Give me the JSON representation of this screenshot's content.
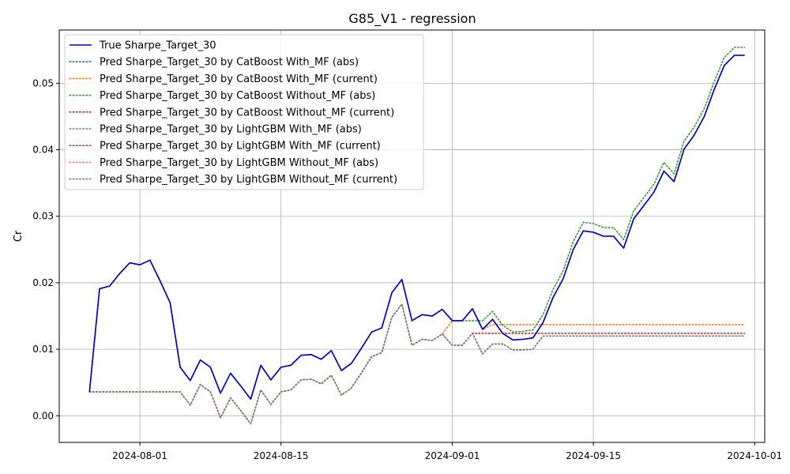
{
  "chart_data": {
    "type": "line",
    "title": "G85_V1 - regression",
    "xlabel": "",
    "ylabel": "Cr",
    "x_type": "date",
    "xlim": [
      "2024-07-24",
      "2024-10-02"
    ],
    "ylim": [
      -0.004,
      0.058
    ],
    "x_ticks": [
      "2024-08-01",
      "2024-08-15",
      "2024-09-01",
      "2024-09-15",
      "2024-10-01"
    ],
    "y_ticks": [
      0.0,
      0.01,
      0.02,
      0.03,
      0.04,
      0.05
    ],
    "y_tick_labels": [
      "0.00",
      "0.01",
      "0.02",
      "0.03",
      "0.04",
      "0.05"
    ],
    "grid": true,
    "legend_position": "top-left",
    "x": [
      "2024-07-27",
      "2024-07-28",
      "2024-07-29",
      "2024-07-30",
      "2024-07-31",
      "2024-08-01",
      "2024-08-02",
      "2024-08-03",
      "2024-08-04",
      "2024-08-05",
      "2024-08-06",
      "2024-08-07",
      "2024-08-08",
      "2024-08-09",
      "2024-08-10",
      "2024-08-11",
      "2024-08-12",
      "2024-08-13",
      "2024-08-14",
      "2024-08-15",
      "2024-08-16",
      "2024-08-17",
      "2024-08-18",
      "2024-08-19",
      "2024-08-20",
      "2024-08-21",
      "2024-08-22",
      "2024-08-23",
      "2024-08-24",
      "2024-08-25",
      "2024-08-26",
      "2024-08-27",
      "2024-08-28",
      "2024-08-29",
      "2024-08-30",
      "2024-08-31",
      "2024-09-01",
      "2024-09-02",
      "2024-09-03",
      "2024-09-04",
      "2024-09-05",
      "2024-09-06",
      "2024-09-07",
      "2024-09-08",
      "2024-09-09",
      "2024-09-10",
      "2024-09-11",
      "2024-09-12",
      "2024-09-13",
      "2024-09-14",
      "2024-09-15",
      "2024-09-16",
      "2024-09-17",
      "2024-09-18",
      "2024-09-19",
      "2024-09-20",
      "2024-09-21",
      "2024-09-22",
      "2024-09-23",
      "2024-09-24",
      "2024-09-25",
      "2024-09-26",
      "2024-09-27",
      "2024-09-28",
      "2024-09-29",
      "2024-09-30"
    ],
    "series": [
      {
        "name": "True Sharpe_Target_30",
        "color": "#0000cd",
        "style": "solid",
        "values": [
          0.0036,
          0.0191,
          0.0195,
          0.0214,
          0.023,
          0.0227,
          0.0234,
          0.0203,
          0.017,
          0.0073,
          0.0053,
          0.0084,
          0.0073,
          0.0034,
          0.0064,
          0.0045,
          0.0025,
          0.0076,
          0.0054,
          0.0073,
          0.0076,
          0.0091,
          0.0092,
          0.0085,
          0.0098,
          0.0068,
          0.0079,
          0.0102,
          0.0126,
          0.0132,
          0.0185,
          0.0205,
          0.0143,
          0.0152,
          0.015,
          0.016,
          0.0143,
          0.0143,
          0.0161,
          0.013,
          0.0145,
          0.0124,
          0.0114,
          0.0115,
          0.0117,
          0.014,
          0.0178,
          0.0206,
          0.025,
          0.0278,
          0.0276,
          0.027,
          0.027,
          0.0252,
          0.0296,
          0.0316,
          0.0336,
          0.0368,
          0.0352,
          0.0401,
          0.0422,
          0.045,
          0.0491,
          0.0527,
          0.0542,
          0.0542
        ]
      },
      {
        "name": "Pred Sharpe_Target_30 by CatBoost With_MF (abs)",
        "color": "#1f77b4",
        "style": "dotted",
        "values": [
          0.0036,
          0.0191,
          0.0195,
          0.0214,
          0.023,
          0.0227,
          0.0234,
          0.0203,
          0.017,
          0.0073,
          0.0053,
          0.0084,
          0.0073,
          0.0034,
          0.0064,
          0.0045,
          0.0025,
          0.0076,
          0.0054,
          0.0073,
          0.0076,
          0.0091,
          0.0092,
          0.0085,
          0.0098,
          0.0068,
          0.0079,
          0.0102,
          0.0126,
          0.0132,
          0.0185,
          0.0205,
          0.0143,
          0.0152,
          0.015,
          0.016,
          0.0143,
          0.0143,
          0.0161,
          0.013,
          0.0145,
          0.0124,
          0.0114,
          0.0115,
          0.0117,
          0.014,
          0.0178,
          0.0206,
          0.025,
          0.0278,
          0.0276,
          0.027,
          0.027,
          0.0252,
          0.0296,
          0.0316,
          0.0336,
          0.0368,
          0.0352,
          0.0401,
          0.0422,
          0.045,
          0.0491,
          0.0527,
          0.0542,
          0.0542
        ]
      },
      {
        "name": "Pred Sharpe_Target_30 by CatBoost With_MF (current)",
        "color": "#ff7f0e",
        "style": "dotted",
        "values": [
          0.0036,
          0.0036,
          0.0036,
          0.0036,
          0.0036,
          0.0036,
          0.0036,
          0.0036,
          0.0036,
          0.0036,
          0.0016,
          0.0047,
          0.0036,
          -0.0003,
          0.0027,
          0.0008,
          -0.0012,
          0.0039,
          0.0017,
          0.0036,
          0.0039,
          0.0054,
          0.0055,
          0.0048,
          0.0061,
          0.0031,
          0.0042,
          0.0065,
          0.0089,
          0.0095,
          0.0148,
          0.0168,
          0.0106,
          0.0115,
          0.0113,
          0.0123,
          0.0143,
          0.0143,
          0.0161,
          0.013,
          0.0137,
          0.0137,
          0.0137,
          0.0137,
          0.0137,
          0.0137,
          0.0137,
          0.0137,
          0.0137,
          0.0137,
          0.0137,
          0.0137,
          0.0137,
          0.0137,
          0.0137,
          0.0137,
          0.0137,
          0.0137,
          0.0137,
          0.0137,
          0.0137,
          0.0137,
          0.0137,
          0.0137,
          0.0137,
          0.0137
        ]
      },
      {
        "name": "Pred Sharpe_Target_30 by CatBoost Without_MF (abs)",
        "color": "#2ca02c",
        "style": "dotted",
        "values": [
          0.0036,
          0.0191,
          0.0195,
          0.0214,
          0.023,
          0.0227,
          0.0234,
          0.0203,
          0.017,
          0.0073,
          0.0053,
          0.0084,
          0.0073,
          0.0034,
          0.0064,
          0.0045,
          0.0025,
          0.0076,
          0.0054,
          0.0073,
          0.0076,
          0.0091,
          0.0092,
          0.0085,
          0.0098,
          0.0068,
          0.0079,
          0.0102,
          0.0126,
          0.0132,
          0.0185,
          0.0205,
          0.0143,
          0.0152,
          0.015,
          0.016,
          0.0143,
          0.0143,
          0.0143,
          0.0143,
          0.0157,
          0.0136,
          0.0126,
          0.0127,
          0.0129,
          0.0152,
          0.019,
          0.0218,
          0.0262,
          0.0291,
          0.0289,
          0.0283,
          0.0283,
          0.0265,
          0.0308,
          0.0328,
          0.0348,
          0.0381,
          0.0364,
          0.0413,
          0.0434,
          0.0462,
          0.0503,
          0.0539,
          0.0554,
          0.0554
        ]
      },
      {
        "name": "Pred Sharpe_Target_30 by CatBoost Without_MF (current)",
        "color": "#d62728",
        "style": "dotted",
        "values": [
          0.0036,
          0.0036,
          0.0036,
          0.0036,
          0.0036,
          0.0036,
          0.0036,
          0.0036,
          0.0036,
          0.0036,
          0.0016,
          0.0047,
          0.0036,
          -0.0003,
          0.0027,
          0.0008,
          -0.0012,
          0.0039,
          0.0017,
          0.0036,
          0.0039,
          0.0054,
          0.0055,
          0.0048,
          0.0061,
          0.0031,
          0.0042,
          0.0065,
          0.0089,
          0.0095,
          0.0148,
          0.0168,
          0.0106,
          0.0115,
          0.0113,
          0.0123,
          0.0106,
          0.0106,
          0.0124,
          0.0124,
          0.0124,
          0.0124,
          0.0124,
          0.0124,
          0.0124,
          0.0124,
          0.0124,
          0.0124,
          0.0124,
          0.0124,
          0.0124,
          0.0124,
          0.0124,
          0.0124,
          0.0124,
          0.0124,
          0.0124,
          0.0124,
          0.0124,
          0.0124,
          0.0124,
          0.0124,
          0.0124,
          0.0124,
          0.0124,
          0.0124
        ]
      },
      {
        "name": "Pred Sharpe_Target_30 by LightGBM With_MF (abs)",
        "color": "#9467bd",
        "style": "dotted",
        "values": [
          0.0036,
          0.0191,
          0.0195,
          0.0214,
          0.023,
          0.0227,
          0.0234,
          0.0203,
          0.017,
          0.0073,
          0.0053,
          0.0084,
          0.0073,
          0.0034,
          0.0064,
          0.0045,
          0.0025,
          0.0076,
          0.0054,
          0.0073,
          0.0076,
          0.0091,
          0.0092,
          0.0085,
          0.0098,
          0.0068,
          0.0079,
          0.0102,
          0.0126,
          0.0132,
          0.0185,
          0.0205,
          0.0143,
          0.0152,
          0.015,
          0.016,
          0.0143,
          0.0143,
          0.0161,
          0.013,
          0.0145,
          0.0124,
          0.0114,
          0.0115,
          0.0117,
          0.014,
          0.0178,
          0.0206,
          0.025,
          0.0278,
          0.0276,
          0.027,
          0.027,
          0.0252,
          0.0296,
          0.0316,
          0.0336,
          0.0368,
          0.0352,
          0.0401,
          0.0422,
          0.045,
          0.0491,
          0.0527,
          0.0542,
          0.0542
        ]
      },
      {
        "name": "Pred Sharpe_Target_30 by LightGBM With_MF (current)",
        "color": "#8c564b",
        "style": "dotted",
        "values": [
          0.0036,
          0.0036,
          0.0036,
          0.0036,
          0.0036,
          0.0036,
          0.0036,
          0.0036,
          0.0036,
          0.0036,
          0.0016,
          0.0047,
          0.0036,
          -0.0003,
          0.0027,
          0.0008,
          -0.0012,
          0.0039,
          0.0017,
          0.0036,
          0.0039,
          0.0054,
          0.0055,
          0.0048,
          0.0061,
          0.0031,
          0.0042,
          0.0065,
          0.0089,
          0.0095,
          0.0148,
          0.0168,
          0.0106,
          0.0115,
          0.0113,
          0.0123,
          0.0106,
          0.0106,
          0.0124,
          0.0093,
          0.0108,
          0.0108,
          0.0099,
          0.0099,
          0.01,
          0.012,
          0.012,
          0.012,
          0.012,
          0.012,
          0.012,
          0.012,
          0.012,
          0.012,
          0.012,
          0.012,
          0.012,
          0.012,
          0.012,
          0.012,
          0.012,
          0.012,
          0.012,
          0.012,
          0.012,
          0.012
        ]
      },
      {
        "name": "Pred Sharpe_Target_30 by LightGBM Without_MF (abs)",
        "color": "#e377c2",
        "style": "dotted",
        "values": [
          0.0036,
          0.0191,
          0.0195,
          0.0214,
          0.023,
          0.0227,
          0.0234,
          0.0203,
          0.017,
          0.0073,
          0.0053,
          0.0084,
          0.0073,
          0.0034,
          0.0064,
          0.0045,
          0.0025,
          0.0076,
          0.0054,
          0.0073,
          0.0076,
          0.0091,
          0.0092,
          0.0085,
          0.0098,
          0.0068,
          0.0079,
          0.0102,
          0.0126,
          0.0132,
          0.0185,
          0.0205,
          0.0143,
          0.0152,
          0.015,
          0.016,
          0.0143,
          0.0143,
          0.0161,
          0.013,
          0.0145,
          0.0124,
          0.0114,
          0.0115,
          0.0117,
          0.014,
          0.0178,
          0.0206,
          0.025,
          0.0278,
          0.0276,
          0.027,
          0.027,
          0.0252,
          0.0296,
          0.0316,
          0.0336,
          0.0368,
          0.0352,
          0.0401,
          0.0422,
          0.045,
          0.0491,
          0.0527,
          0.0542,
          0.0542
        ]
      },
      {
        "name": "Pred Sharpe_Target_30 by LightGBM Without_MF (current)",
        "color": "#7f7f7f",
        "style": "dotted",
        "values": [
          0.0036,
          0.0036,
          0.0036,
          0.0036,
          0.0036,
          0.0036,
          0.0036,
          0.0036,
          0.0036,
          0.0036,
          0.0016,
          0.0047,
          0.0036,
          -0.0003,
          0.0027,
          0.0008,
          -0.0012,
          0.0039,
          0.0017,
          0.0036,
          0.0039,
          0.0054,
          0.0055,
          0.0048,
          0.0061,
          0.0031,
          0.0042,
          0.0065,
          0.0089,
          0.0095,
          0.0148,
          0.0168,
          0.0106,
          0.0115,
          0.0113,
          0.0123,
          0.0106,
          0.0106,
          0.0124,
          0.0093,
          0.0108,
          0.0108,
          0.0099,
          0.0099,
          0.01,
          0.012,
          0.012,
          0.012,
          0.012,
          0.012,
          0.012,
          0.012,
          0.012,
          0.012,
          0.012,
          0.012,
          0.012,
          0.012,
          0.012,
          0.012,
          0.012,
          0.012,
          0.012,
          0.012,
          0.012,
          0.012
        ]
      }
    ]
  }
}
